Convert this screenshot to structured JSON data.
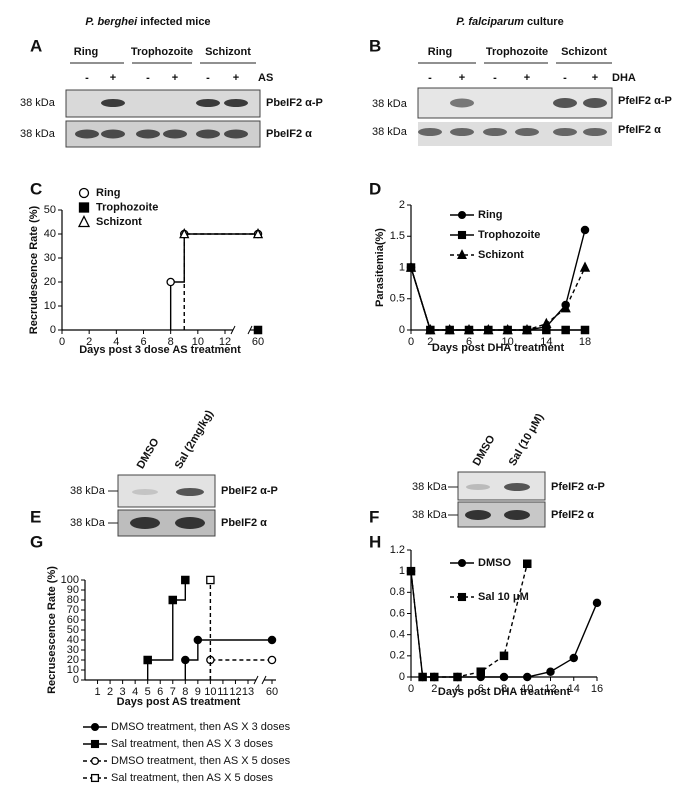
{
  "blots": [
    {
      "letter": "A",
      "title_species": "P. berghei",
      "title_rest": "infected mice",
      "groups": [
        "Ring",
        "Trophozoite",
        "Schizont"
      ],
      "lanes": [
        "-",
        "+",
        "-",
        "+",
        "-",
        "+"
      ],
      "treatment": "AS",
      "rows": [
        {
          "size": "38 kDa",
          "protein": "PbeIF2 α-P"
        },
        {
          "size": "38 kDa",
          "protein": "PbeIF2 α"
        }
      ]
    },
    {
      "letter": "B",
      "title_species": "P. falciparum",
      "title_rest": "culture",
      "groups": [
        "Ring",
        "Trophozoite",
        "Schizont"
      ],
      "lanes": [
        "-",
        "+",
        "-",
        "+",
        "-",
        "+"
      ],
      "treatment": "DHA",
      "rows": [
        {
          "size": "38 kDa",
          "protein": "PfeIF2 α-P"
        },
        {
          "size": "38 kDa",
          "protein": "PfeIF2 α"
        }
      ]
    },
    {
      "letter": "E",
      "lanes": [
        "DMSO",
        "Sal (2mg/kg)"
      ],
      "rows": [
        {
          "size": "38 kDa",
          "protein": "PbeIF2 α-P"
        },
        {
          "size": "38 kDa",
          "protein": "PbeIF2 α"
        }
      ]
    },
    {
      "letter": "F",
      "lanes": [
        "DMSO",
        "Sal (10 μM)"
      ],
      "rows": [
        {
          "size": "38 kDa",
          "protein": "PfeIF2 α-P"
        },
        {
          "size": "38 kDa",
          "protein": "PfeIF2 α"
        }
      ]
    }
  ],
  "chart_data": [
    {
      "letter": "C",
      "type": "step",
      "ylabel": "Recrudescence Rate (%)",
      "xlabel": "Days post  3 dose AS treatment",
      "xlim": [
        0,
        60
      ],
      "xticks": [
        0,
        2,
        4,
        6,
        8,
        10,
        12,
        60
      ],
      "axis_break": true,
      "ylim": [
        0,
        50
      ],
      "yticks": [
        0,
        10,
        20,
        30,
        40,
        50
      ],
      "series": [
        {
          "name": "Ring",
          "color": "#000000",
          "marker": "circle",
          "filled": false,
          "dashed": false,
          "x": [
            8,
            9,
            60
          ],
          "values": [
            20,
            40,
            40
          ]
        },
        {
          "name": "Trophozoite",
          "color": "#000000",
          "marker": "square",
          "filled": true,
          "dashed": false,
          "x": [
            60
          ],
          "values": [
            0
          ]
        },
        {
          "name": "Schizont",
          "color": "#000000",
          "marker": "triangle",
          "filled": false,
          "dashed": true,
          "x": [
            9,
            60
          ],
          "values": [
            40,
            40
          ]
        }
      ]
    },
    {
      "letter": "D",
      "type": "line",
      "ylabel": "Parasitemia(%)",
      "xlabel": "Days post DHA treatment",
      "x": [
        0,
        2,
        4,
        6,
        8,
        10,
        12,
        14,
        16,
        18
      ],
      "xlim": [
        0,
        18
      ],
      "xticks": [
        0,
        2,
        6,
        10,
        14,
        18
      ],
      "ylim": [
        0,
        2
      ],
      "yticks": [
        0,
        0.5,
        1,
        1.5,
        2
      ],
      "series": [
        {
          "name": "Ring",
          "color": "#000000",
          "marker": "circle",
          "filled": true,
          "dashed": false,
          "values": [
            1,
            0,
            0,
            0,
            0,
            0,
            0,
            0.05,
            0.4,
            1.6
          ]
        },
        {
          "name": "Trophozoite",
          "color": "#000000",
          "marker": "square",
          "filled": true,
          "dashed": false,
          "values": [
            1,
            0,
            0,
            0,
            0,
            0,
            0,
            0,
            0,
            0
          ]
        },
        {
          "name": "Schizont",
          "color": "#000000",
          "marker": "triangle",
          "filled": true,
          "dashed": true,
          "values": [
            1,
            0,
            0,
            0,
            0,
            0,
            0,
            0.1,
            0.35,
            1
          ]
        }
      ]
    },
    {
      "letter": "G",
      "type": "step",
      "ylabel": "Recrusescence Rate (%)",
      "xlabel": "Days post AS treatment",
      "xlim": [
        0,
        60
      ],
      "xticks": [
        1,
        2,
        3,
        4,
        5,
        6,
        7,
        8,
        9,
        10,
        11,
        12,
        13,
        60
      ],
      "axis_break": true,
      "ylim": [
        0,
        100
      ],
      "yticks": [
        0,
        10,
        20,
        30,
        40,
        50,
        60,
        70,
        80,
        90,
        100
      ],
      "series": [
        {
          "name": "DMSO treatment, then AS X 3 doses",
          "color": "#000000",
          "marker": "circle",
          "filled": true,
          "dashed": false,
          "x": [
            8,
            9,
            60
          ],
          "values": [
            20,
            40,
            40
          ]
        },
        {
          "name": "Sal treatment, then AS X 3 doses",
          "color": "#000000",
          "marker": "square",
          "filled": true,
          "dashed": false,
          "x": [
            5,
            7,
            8
          ],
          "values": [
            20,
            80,
            100
          ]
        },
        {
          "name": "DMSO treatment, then AS X 5 doses",
          "color": "#000000",
          "marker": "circle",
          "filled": false,
          "dashed": true,
          "x": [
            10,
            60
          ],
          "values": [
            20,
            20
          ]
        },
        {
          "name": "Sal treatment, then AS X 5 doses",
          "color": "#000000",
          "marker": "square",
          "filled": false,
          "dashed": true,
          "x": [
            10
          ],
          "values": [
            100
          ]
        }
      ]
    },
    {
      "letter": "H",
      "type": "line",
      "xlabel": "Days post DHA treatment",
      "xlim": [
        0,
        16
      ],
      "xticks": [
        0,
        2,
        4,
        6,
        8,
        10,
        12,
        14,
        16
      ],
      "ylim": [
        0,
        1.2
      ],
      "yticks": [
        0,
        0.2,
        0.4,
        0.6,
        0.8,
        1,
        1.2
      ],
      "series": [
        {
          "name": "DMSO",
          "color": "#000000",
          "marker": "circle",
          "filled": true,
          "dashed": false,
          "x": [
            0,
            1,
            2,
            4,
            6,
            8,
            10,
            12,
            14,
            16
          ],
          "values": [
            1,
            0,
            0,
            0,
            0,
            0,
            0,
            0.05,
            0.18,
            0.7
          ]
        },
        {
          "name": "Sal 10 μM",
          "color": "#000000",
          "marker": "square",
          "filled": true,
          "dashed": true,
          "x": [
            0,
            1,
            2,
            4,
            6,
            8,
            10
          ],
          "values": [
            1,
            0,
            0,
            0,
            0.05,
            0.2,
            1.07
          ]
        }
      ]
    }
  ]
}
